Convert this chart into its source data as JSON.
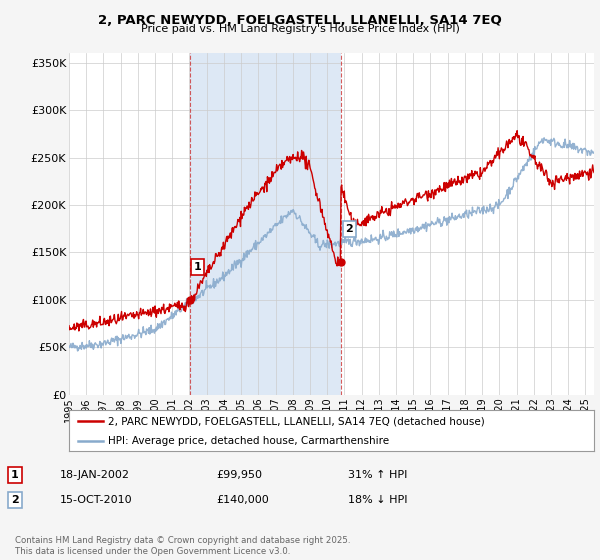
{
  "title": "2, PARC NEWYDD, FOELGASTELL, LLANELLI, SA14 7EQ",
  "subtitle": "Price paid vs. HM Land Registry's House Price Index (HPI)",
  "legend_line1": "2, PARC NEWYDD, FOELGASTELL, LLANELLI, SA14 7EQ (detached house)",
  "legend_line2": "HPI: Average price, detached house, Carmarthenshire",
  "sale1_label": "1",
  "sale1_date": "18-JAN-2002",
  "sale1_price": "£99,950",
  "sale1_hpi": "31% ↑ HPI",
  "sale1_year": 2002.05,
  "sale1_value": 99950,
  "sale2_label": "2",
  "sale2_date": "15-OCT-2010",
  "sale2_price": "£140,000",
  "sale2_hpi": "18% ↓ HPI",
  "sale2_year": 2010.79,
  "sale2_value": 140000,
  "yticks": [
    0,
    50000,
    100000,
    150000,
    200000,
    250000,
    300000,
    350000
  ],
  "ytick_labels": [
    "£0",
    "£50K",
    "£100K",
    "£150K",
    "£200K",
    "£250K",
    "£300K",
    "£350K"
  ],
  "xmin": 1995,
  "xmax": 2025.5,
  "ymin": 0,
  "ymax": 360000,
  "bg_color": "#f5f5f5",
  "plot_bg": "#ffffff",
  "red_color": "#cc0000",
  "blue_color": "#88aacc",
  "shade_color": "#dde8f5",
  "footer": "Contains HM Land Registry data © Crown copyright and database right 2025.\nThis data is licensed under the Open Government Licence v3.0."
}
